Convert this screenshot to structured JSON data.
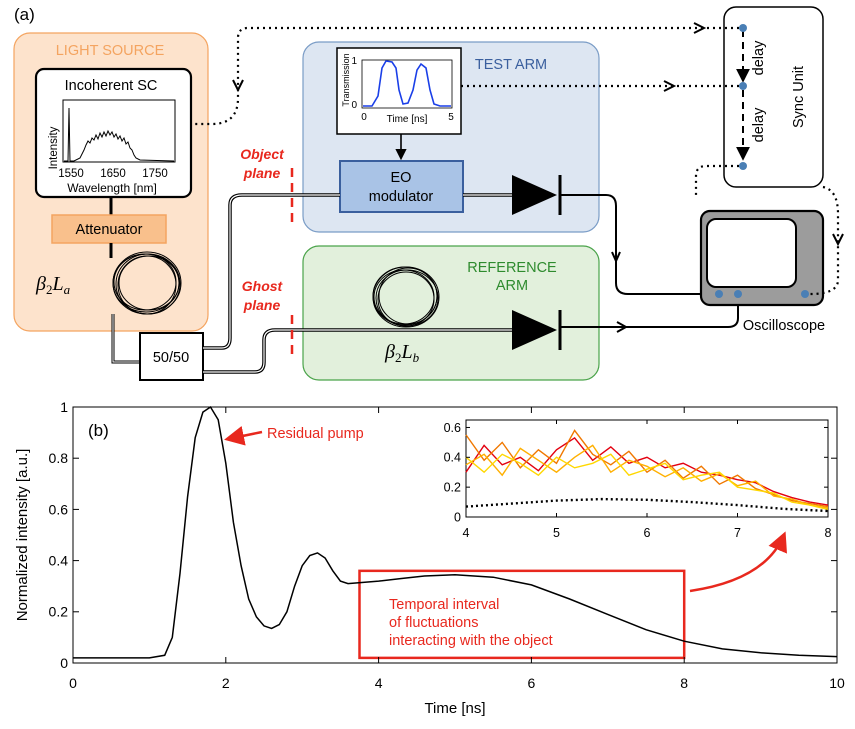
{
  "panel_a": {
    "label": "(a)",
    "light_source": {
      "title": "LIGHT SOURCE",
      "sc_box_title": "Incoherent SC",
      "sc_ylabel": "Intensity",
      "sc_xticks": [
        "1550",
        "1650",
        "1750"
      ],
      "sc_xlabel": "Wavelength [nm]",
      "attenuator": "Attenuator",
      "fiber_label": "β2La"
    },
    "test_arm": {
      "title": "TEST ARM",
      "modulator_line1": "EO",
      "modulator_line2": "modulator",
      "inset_ylabel": "Transmission",
      "inset_xlabel": "Time [ns]",
      "inset_xticks": [
        "0",
        "5"
      ],
      "inset_yticks": [
        "0",
        "1"
      ]
    },
    "reference_arm": {
      "title_line1": "REFERENCE",
      "title_line2": "ARM",
      "fiber_label": "β2Lb"
    },
    "object_plane": [
      "Object",
      "plane"
    ],
    "ghost_plane": [
      "Ghost",
      "plane"
    ],
    "splitter": "50/50",
    "sync_unit": {
      "title": "Sync Unit",
      "delay1": "delay",
      "delay2": "delay"
    },
    "oscilloscope": "Oscilloscope",
    "colors": {
      "light_source_fill": "#fde3cc",
      "light_source_border": "#f4a460",
      "light_source_title": "#f4a460",
      "test_arm_fill": "#dde6f2",
      "test_arm_border": "#7a9cc6",
      "test_arm_title": "#3a5f9e",
      "ref_arm_fill": "#e2f0dc",
      "ref_arm_border": "#4aa34a",
      "ref_arm_title": "#2e8b2e",
      "plane_red": "#e8281e",
      "modulator_fill": "#a9c3e6",
      "attenuator_fill": "#f9c08c"
    }
  },
  "panel_b": {
    "label": "(b)",
    "annotation_pump": "Residual pump",
    "annotation_interval": [
      "Temporal interval",
      "of fluctuations",
      "interacting with the object"
    ],
    "chart_data": [
      {
        "type": "line",
        "xlabel": "Time [ns]",
        "ylabel": "Normalized intensity [a.u.]",
        "xlim": [
          0,
          10
        ],
        "ylim": [
          0,
          1
        ],
        "xticks": [
          "0",
          "2",
          "4",
          "6",
          "8",
          "10"
        ],
        "yticks": [
          "0",
          "0.2",
          "0.4",
          "0.6",
          "0.8",
          "1"
        ],
        "series": [
          {
            "color": "#000000",
            "x": [
              0,
              0.5,
              1.0,
              1.2,
              1.3,
              1.4,
              1.5,
              1.6,
              1.7,
              1.8,
              1.9,
              2.0,
              2.1,
              2.2,
              2.3,
              2.4,
              2.5,
              2.6,
              2.7,
              2.8,
              2.9,
              3.0,
              3.1,
              3.2,
              3.3,
              3.4,
              3.5,
              3.6,
              3.8,
              4.0,
              4.3,
              4.6,
              5.0,
              5.5,
              6.0,
              6.5,
              7.0,
              7.5,
              8.0,
              8.5,
              9.0,
              9.5,
              10.0
            ],
            "y": [
              0.02,
              0.02,
              0.02,
              0.03,
              0.1,
              0.35,
              0.65,
              0.88,
              0.98,
              1.0,
              0.95,
              0.78,
              0.55,
              0.38,
              0.25,
              0.18,
              0.145,
              0.135,
              0.15,
              0.2,
              0.3,
              0.38,
              0.42,
              0.43,
              0.41,
              0.36,
              0.32,
              0.31,
              0.315,
              0.32,
              0.33,
              0.34,
              0.345,
              0.335,
              0.305,
              0.25,
              0.19,
              0.13,
              0.085,
              0.055,
              0.04,
              0.03,
              0.025
            ]
          }
        ],
        "highlight_box": {
          "x": [
            3.75,
            8.0
          ],
          "y": [
            0.02,
            0.36
          ],
          "color": "#e8281e"
        }
      },
      {
        "type": "line",
        "xlim": [
          4,
          8
        ],
        "ylim": [
          0,
          0.65
        ],
        "xticks": [
          "4",
          "5",
          "6",
          "7",
          "8"
        ],
        "yticks": [
          "0",
          "0.2",
          "0.4",
          "0.6"
        ],
        "series": [
          {
            "color": "#e3000f",
            "x": [
              4.0,
              4.2,
              4.4,
              4.6,
              4.8,
              5.0,
              5.2,
              5.4,
              5.6,
              5.8,
              6.0,
              6.2,
              6.4,
              6.6,
              6.8,
              7.0,
              7.2,
              7.4,
              7.6,
              7.8,
              8.0
            ],
            "y": [
              0.3,
              0.48,
              0.35,
              0.4,
              0.31,
              0.45,
              0.53,
              0.38,
              0.47,
              0.36,
              0.4,
              0.33,
              0.36,
              0.3,
              0.28,
              0.25,
              0.23,
              0.17,
              0.13,
              0.1,
              0.08
            ]
          },
          {
            "color": "#f07800",
            "x": [
              4.0,
              4.2,
              4.4,
              4.6,
              4.8,
              5.0,
              5.2,
              5.4,
              5.6,
              5.8,
              6.0,
              6.2,
              6.4,
              6.6,
              6.8,
              7.0,
              7.2,
              7.4,
              7.6,
              7.8,
              8.0
            ],
            "y": [
              0.55,
              0.38,
              0.5,
              0.33,
              0.45,
              0.36,
              0.58,
              0.42,
              0.35,
              0.44,
              0.3,
              0.38,
              0.26,
              0.34,
              0.22,
              0.28,
              0.19,
              0.15,
              0.11,
              0.09,
              0.07
            ]
          },
          {
            "color": "#ffb000",
            "x": [
              4.0,
              4.2,
              4.4,
              4.6,
              4.8,
              5.0,
              5.2,
              5.4,
              5.6,
              5.8,
              6.0,
              6.2,
              6.4,
              6.6,
              6.8,
              7.0,
              7.2,
              7.4,
              7.6,
              7.8,
              8.0
            ],
            "y": [
              0.35,
              0.42,
              0.28,
              0.46,
              0.38,
              0.3,
              0.4,
              0.48,
              0.3,
              0.38,
              0.34,
              0.27,
              0.33,
              0.24,
              0.29,
              0.21,
              0.24,
              0.14,
              0.12,
              0.08,
              0.06
            ]
          },
          {
            "color": "#ffd800",
            "x": [
              4.0,
              4.2,
              4.4,
              4.6,
              4.8,
              5.0,
              5.2,
              5.4,
              5.6,
              5.8,
              6.0,
              6.2,
              6.4,
              6.6,
              6.8,
              7.0,
              7.2,
              7.4,
              7.6,
              7.8,
              8.0
            ],
            "y": [
              0.4,
              0.3,
              0.42,
              0.36,
              0.28,
              0.4,
              0.33,
              0.36,
              0.42,
              0.28,
              0.32,
              0.36,
              0.25,
              0.28,
              0.3,
              0.2,
              0.18,
              0.16,
              0.1,
              0.08,
              0.05
            ]
          },
          {
            "color": "#000000",
            "dashed": true,
            "x": [
              4.0,
              4.5,
              5.0,
              5.5,
              6.0,
              6.5,
              7.0,
              7.5,
              8.0
            ],
            "y": [
              0.07,
              0.09,
              0.11,
              0.12,
              0.115,
              0.1,
              0.08,
              0.055,
              0.04
            ]
          }
        ]
      }
    ]
  }
}
